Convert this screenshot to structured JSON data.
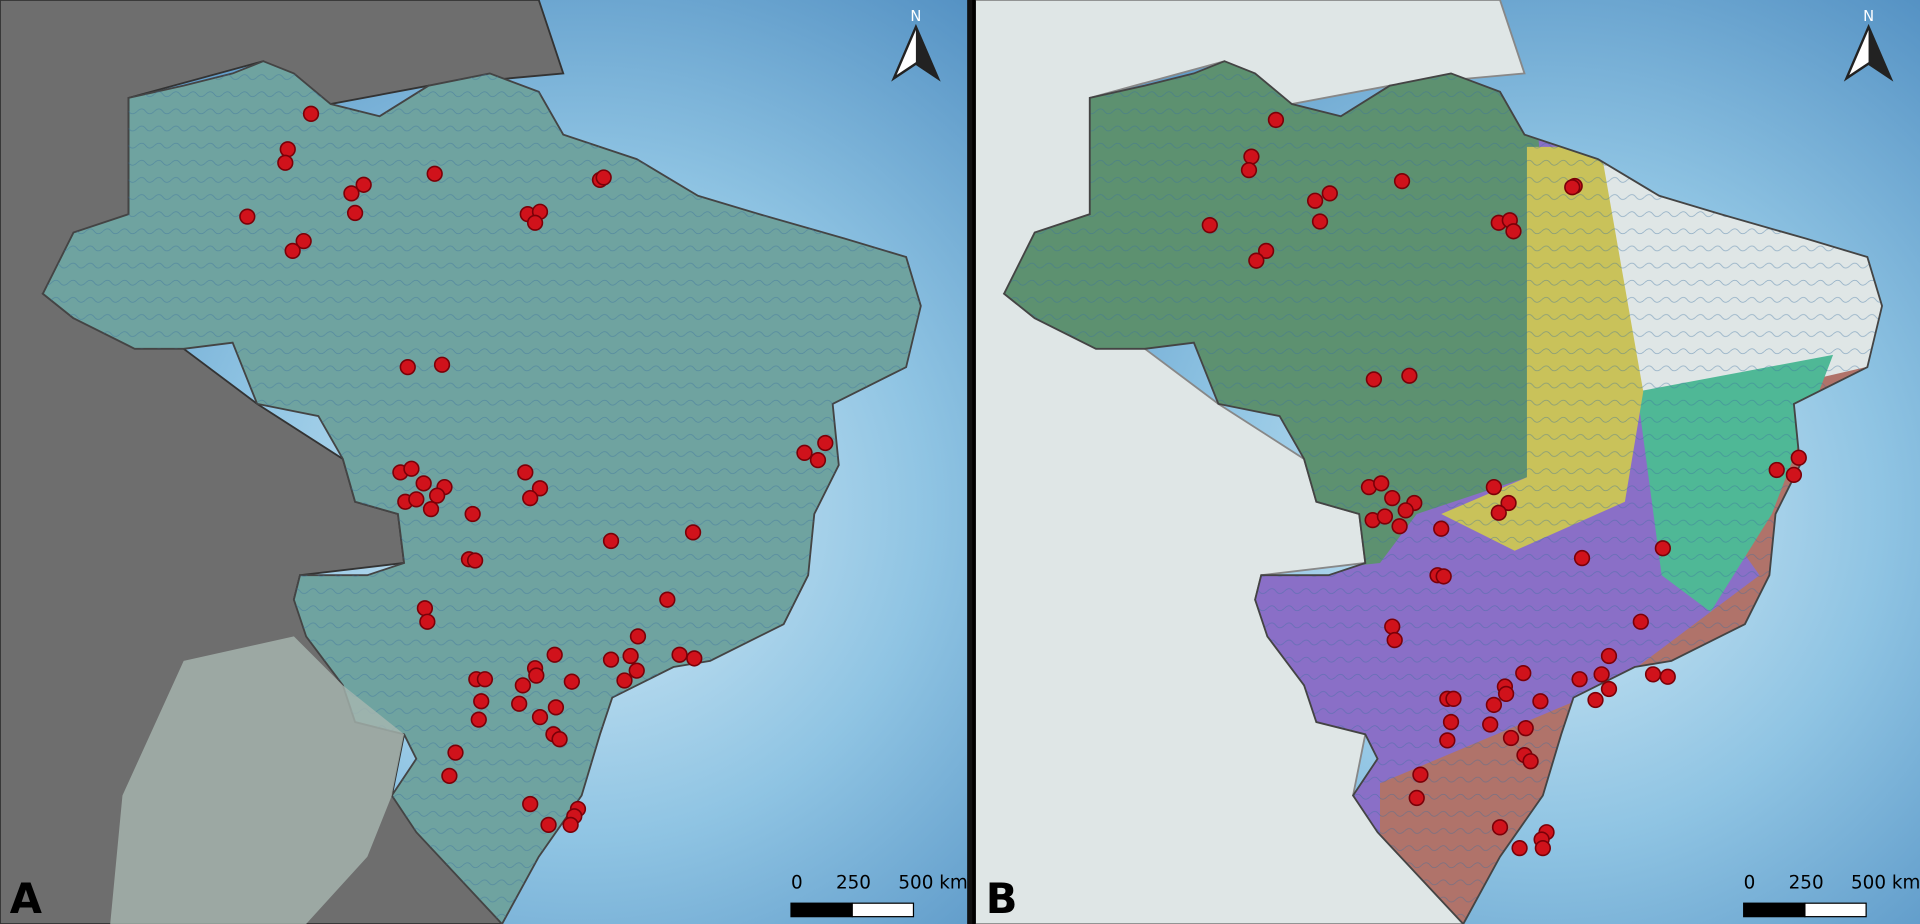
{
  "panels": [
    {
      "label": "A",
      "north": "N",
      "scale": [
        "0",
        "250",
        "500 km"
      ]
    },
    {
      "label": "B",
      "north": "N",
      "scale": [
        "0",
        "250",
        "500 km"
      ]
    }
  ]
}
